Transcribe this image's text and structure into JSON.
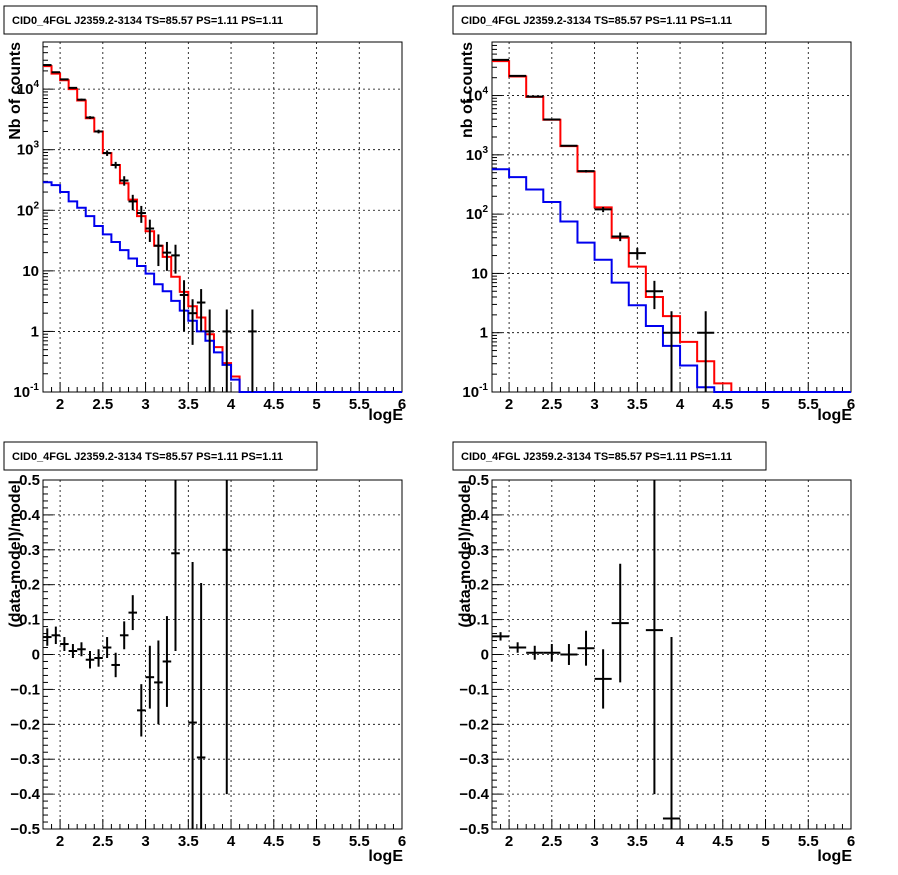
{
  "chart_data": [
    {
      "type": "line",
      "title": "CID0_4FGL J2359.2-3134 TS=85.57 PS=1.11 PS=1.11",
      "xlabel": "logE",
      "ylabel": "Nb of counts",
      "xlim": [
        1.8,
        6.0
      ],
      "ylim": [
        0.1,
        60000
      ],
      "yscale": "log",
      "grid": true,
      "x_ticks": [
        "2",
        "2.5",
        "3",
        "3.5",
        "4",
        "4.5",
        "5",
        "5.5",
        "6"
      ],
      "y_ticks": [
        "10-1",
        "1",
        "10",
        "102",
        "103",
        "104"
      ],
      "bin_edges": [
        1.8,
        1.9,
        2.0,
        2.1,
        2.2,
        2.3,
        2.4,
        2.5,
        2.6,
        2.7,
        2.8,
        2.9,
        3.0,
        3.1,
        3.2,
        3.3,
        3.4,
        3.5,
        3.6,
        3.7,
        3.8,
        3.9,
        4.0,
        4.1,
        4.2,
        4.3,
        4.4,
        4.5,
        4.6,
        4.7,
        4.8,
        4.9,
        5.0,
        5.1,
        5.2,
        5.3,
        5.4,
        5.5,
        5.6,
        5.7,
        5.8,
        5.9,
        6.0
      ],
      "series": [
        {
          "style": "histogram",
          "color": "#ff0000",
          "values": [
            24000,
            18000,
            14000,
            10000,
            6500,
            3300,
            2000,
            880,
            560,
            280,
            150,
            80,
            45,
            26,
            17,
            8,
            4.5,
            2.6,
            1.7,
            0.9,
            0.55,
            0.3,
            0.18,
            0.1,
            0.1,
            0.1,
            0.1,
            0.1,
            0.1,
            0.1,
            0.1,
            0.1,
            0.1,
            0.1,
            0.1,
            0.1,
            0.1,
            0.1,
            0.1,
            0.1,
            0.1,
            0.1
          ]
        },
        {
          "style": "histogram",
          "color": "#0000ee",
          "values": [
            290,
            260,
            200,
            140,
            110,
            80,
            55,
            40,
            30,
            22,
            16,
            12,
            9,
            6,
            4.6,
            3.2,
            2.2,
            1.5,
            1.0,
            0.7,
            0.45,
            0.28,
            0.16,
            0.1,
            0.1,
            0.1,
            0.1,
            0.1,
            0.1,
            0.1,
            0.1,
            0.1,
            0.1,
            0.1,
            0.1,
            0.1,
            0.1,
            0.1,
            0.1,
            0.1,
            0.1,
            0.1
          ]
        },
        {
          "style": "errorbar",
          "color": "#000000",
          "x": [
            1.85,
            1.95,
            2.05,
            2.15,
            2.25,
            2.35,
            2.45,
            2.55,
            2.65,
            2.75,
            2.85,
            2.95,
            3.05,
            3.15,
            3.25,
            3.35,
            3.45,
            3.55,
            3.65,
            3.75,
            3.95,
            4.25
          ],
          "y": [
            25000,
            19000,
            14500,
            10500,
            6700,
            3400,
            2000,
            880,
            560,
            310,
            140,
            90,
            50,
            26,
            20,
            18,
            4,
            2,
            3,
            1,
            1,
            1
          ],
          "yerr_low": [
            600,
            500,
            400,
            320,
            260,
            180,
            140,
            90,
            70,
            55,
            40,
            28,
            20,
            14,
            10,
            9,
            3,
            1.4,
            2,
            0.99,
            0.99,
            0.99
          ],
          "yerr_high": [
            600,
            500,
            400,
            320,
            260,
            180,
            140,
            90,
            70,
            55,
            40,
            28,
            20,
            14,
            10,
            9,
            3,
            1.4,
            2,
            1.3,
            1.3,
            1.3
          ]
        }
      ]
    },
    {
      "type": "line",
      "title": "CID0_4FGL J2359.2-3134 TS=85.57 PS=1.11 PS=1.11",
      "xlabel": "logE",
      "ylabel": "nb of counts",
      "xlim": [
        1.8,
        6.0
      ],
      "ylim": [
        0.1,
        80000
      ],
      "yscale": "log",
      "grid": true,
      "x_ticks": [
        "2",
        "2.5",
        "3",
        "3.5",
        "4",
        "4.5",
        "5",
        "5.5",
        "6"
      ],
      "y_ticks": [
        "10-1",
        "1",
        "10",
        "102",
        "103",
        "104"
      ],
      "bin_edges": [
        1.8,
        2.0,
        2.2,
        2.4,
        2.6,
        2.8,
        3.0,
        3.2,
        3.4,
        3.6,
        3.8,
        4.0,
        4.2,
        4.4,
        4.6,
        4.8,
        5.0,
        5.2,
        5.4,
        5.6,
        5.8,
        6.0
      ],
      "series": [
        {
          "style": "histogram",
          "color": "#ff0000",
          "values": [
            38000,
            21000,
            9500,
            3900,
            1400,
            520,
            130,
            40,
            13,
            4.0,
            1.9,
            0.7,
            0.33,
            0.14,
            0.1,
            0.1,
            0.1,
            0.1,
            0.1,
            0.1,
            0.1
          ]
        },
        {
          "style": "histogram",
          "color": "#0000ee",
          "values": [
            570,
            420,
            260,
            160,
            75,
            33,
            17,
            7,
            2.9,
            1.3,
            0.6,
            0.28,
            0.12,
            0.1,
            0.1,
            0.1,
            0.1,
            0.1,
            0.1,
            0.1,
            0.1
          ]
        },
        {
          "style": "errorbar",
          "color": "#000000",
          "x": [
            1.9,
            2.1,
            2.3,
            2.5,
            2.7,
            2.9,
            3.1,
            3.3,
            3.5,
            3.7,
            3.9,
            4.3
          ],
          "y": [
            40000,
            21500,
            9600,
            3950,
            1420,
            530,
            120,
            42,
            22,
            5,
            1,
            1
          ],
          "yerr_low": [
            300,
            180,
            110,
            70,
            40,
            25,
            12,
            7,
            5,
            2.5,
            0.99,
            0.99
          ],
          "yerr_high": [
            300,
            180,
            110,
            70,
            40,
            25,
            12,
            7,
            5,
            2.5,
            1.3,
            1.3
          ]
        }
      ]
    },
    {
      "type": "scatter",
      "title": "CID0_4FGL J2359.2-3134 TS=85.57 PS=1.11 PS=1.11",
      "xlabel": "logE",
      "ylabel": "(data-model)/model",
      "xlim": [
        1.8,
        6.0
      ],
      "ylim": [
        -0.5,
        0.5
      ],
      "yscale": "linear",
      "grid": true,
      "x_ticks": [
        "2",
        "2.5",
        "3",
        "3.5",
        "4",
        "4.5",
        "5",
        "5.5",
        "6"
      ],
      "y_ticks": [
        "-0.5",
        "-0.4",
        "-0.3",
        "-0.2",
        "-0.1",
        "0",
        "0.1",
        "0.2",
        "0.3",
        "0.4",
        "0.5"
      ],
      "series": [
        {
          "style": "errorbar",
          "color": "#000000",
          "x": [
            1.85,
            1.95,
            2.05,
            2.15,
            2.25,
            2.35,
            2.45,
            2.55,
            2.65,
            2.75,
            2.85,
            2.95,
            3.05,
            3.15,
            3.25,
            3.35,
            3.55,
            3.65,
            3.95
          ],
          "y": [
            0.05,
            0.055,
            0.03,
            0.01,
            0.015,
            -0.015,
            -0.01,
            0.02,
            -0.03,
            0.055,
            0.12,
            -0.16,
            -0.065,
            -0.08,
            -0.02,
            0.29,
            -0.195,
            -0.295,
            0.3
          ],
          "yerr": [
            0.025,
            0.025,
            0.02,
            0.02,
            0.02,
            0.025,
            0.025,
            0.03,
            0.035,
            0.04,
            0.05,
            0.075,
            0.09,
            0.12,
            0.13,
            0.28,
            0.46,
            0.5,
            0.7
          ],
          "xerr": 0.05
        }
      ]
    },
    {
      "type": "scatter",
      "title": "CID0_4FGL J2359.2-3134 TS=85.57 PS=1.11 PS=1.11",
      "xlabel": "logE",
      "ylabel": "(data-model)/model",
      "xlim": [
        1.8,
        6.0
      ],
      "ylim": [
        -0.5,
        0.5
      ],
      "yscale": "linear",
      "grid": true,
      "x_ticks": [
        "2",
        "2.5",
        "3",
        "3.5",
        "4",
        "4.5",
        "5",
        "5.5",
        "6"
      ],
      "y_ticks": [
        "-0.5",
        "-0.4",
        "-0.3",
        "-0.2",
        "-0.1",
        "0",
        "0.1",
        "0.2",
        "0.3",
        "0.4",
        "0.5"
      ],
      "series": [
        {
          "style": "errorbar",
          "color": "#000000",
          "x": [
            1.9,
            2.1,
            2.3,
            2.5,
            2.7,
            2.9,
            3.1,
            3.3,
            3.7,
            3.9
          ],
          "y": [
            0.052,
            0.02,
            0.005,
            0.005,
            0.0,
            0.018,
            -0.07,
            0.09,
            0.07,
            -0.47
          ],
          "yerr": [
            0.012,
            0.015,
            0.02,
            0.025,
            0.03,
            0.05,
            0.085,
            0.17,
            0.47,
            0.52
          ],
          "xerr": 0.1
        }
      ]
    }
  ]
}
